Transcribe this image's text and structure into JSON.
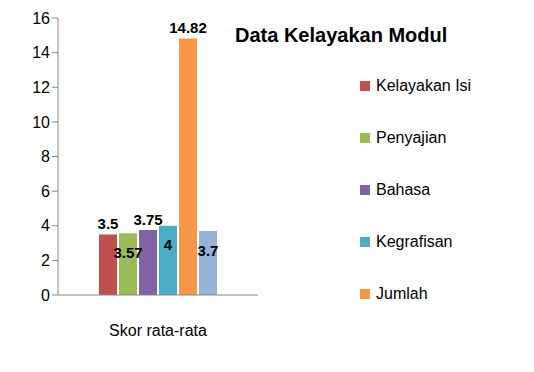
{
  "chart_data": {
    "type": "bar",
    "title": "Data Kelayakan Modul",
    "categories": [
      "Skor rata-rata"
    ],
    "series": [
      {
        "name": "Kelayakan Isi",
        "color": "#c0504d",
        "values": [
          3.5
        ]
      },
      {
        "name": "Penyajian",
        "color": "#9bbb59",
        "values": [
          3.57
        ]
      },
      {
        "name": "Bahasa",
        "color": "#8064a2",
        "values": [
          3.75
        ]
      },
      {
        "name": "Kegrafisan",
        "color": "#4bacc6",
        "values": [
          4
        ]
      },
      {
        "name": "Jumlah",
        "color": "#f79646",
        "values": [
          14.82
        ]
      },
      {
        "name": null,
        "color": "#95b3d7",
        "values": [
          3.7
        ]
      }
    ],
    "ylim": [
      0,
      16
    ],
    "yticks": [
      0,
      2,
      4,
      6,
      8,
      10,
      12,
      14,
      16
    ],
    "legend": "right",
    "data_labels": true
  }
}
